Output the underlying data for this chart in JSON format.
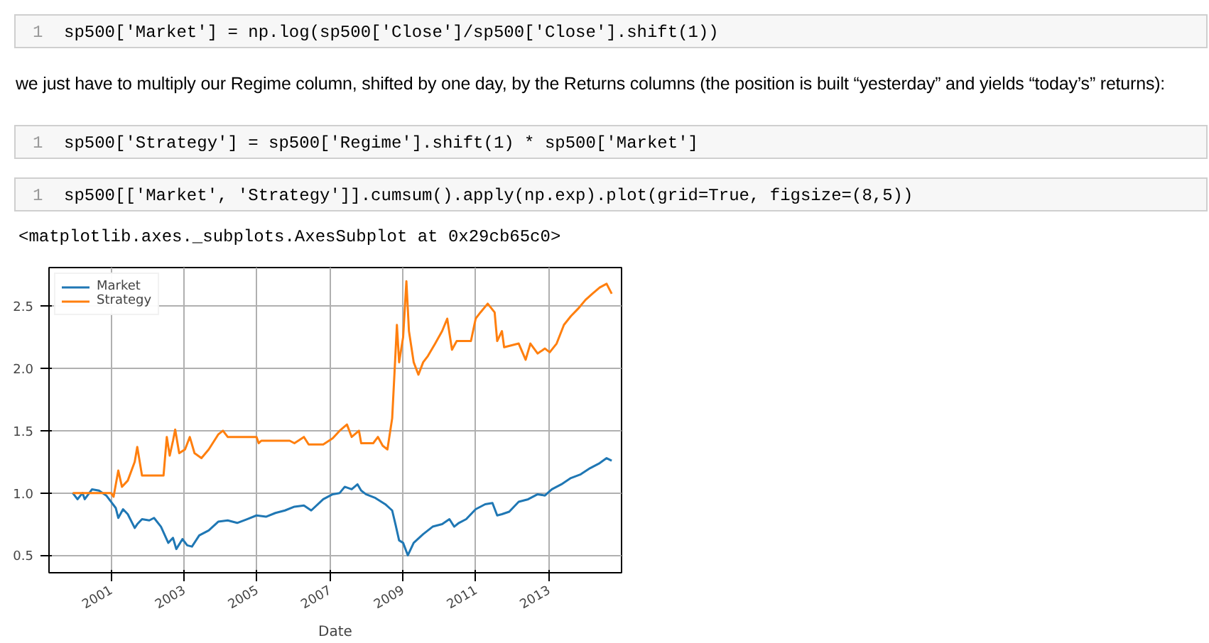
{
  "chart_data": {
    "type": "line",
    "xlabel": "Date",
    "annotations": [
      "1",
      "sp500['Market'] = np.log(sp500['Close']/sp500['Close'].shift(1))",
      "we just have to multiply our Regime column, shifted by one day, by the Returns columns (the position is built “yesterday” and yields “today’s” returns):",
      "1",
      "sp500['Strategy'] = sp500['Regime'].shift(1) * sp500['Market']",
      "1",
      "sp500[['Market', 'Strategy']].cumsum().apply(np.exp).plot(grid=True, figsize=(8,5))",
      "<matplotlib.axes._subplots.AxesSubplot at 0x29cb65c0>"
    ],
    "xlim": [
      1999.3,
      2015.0
    ],
    "xticks": [
      2001,
      2003,
      2005,
      2007,
      2009,
      2011,
      2013
    ],
    "ylim": [
      0.36,
      2.81
    ],
    "yticks": [
      {
        "value": 0.5,
        "label": "0.5"
      },
      {
        "value": 1.0,
        "label": "1.0"
      },
      {
        "value": 1.5,
        "label": "1.5"
      },
      {
        "value": 2.0,
        "label": "2.0"
      },
      {
        "value": 2.5,
        "label": "2.5"
      }
    ],
    "grid": true,
    "legend": "top left",
    "series": [
      {
        "name": "Market",
        "color": "#1f77b4",
        "x": [
          1999.95,
          2000.08,
          2000.22,
          2000.28,
          2000.48,
          2000.67,
          2000.87,
          2001.0,
          2001.13,
          2001.2,
          2001.33,
          2001.46,
          2001.65,
          2001.72,
          2001.85,
          2002.05,
          2002.18,
          2002.37,
          2002.57,
          2002.7,
          2002.79,
          2002.96,
          2003.09,
          2003.22,
          2003.42,
          2003.68,
          2003.94,
          2004.2,
          2004.46,
          2004.73,
          2004.99,
          2005.25,
          2005.51,
          2005.77,
          2006.03,
          2006.29,
          2006.49,
          2006.82,
          2007.08,
          2007.27,
          2007.41,
          2007.6,
          2007.76,
          2007.86,
          2007.99,
          2008.25,
          2008.52,
          2008.71,
          2008.8,
          2008.9,
          2009.01,
          2009.14,
          2009.3,
          2009.56,
          2009.82,
          2010.08,
          2010.28,
          2010.41,
          2010.54,
          2010.74,
          2011.0,
          2011.26,
          2011.46,
          2011.59,
          2011.72,
          2011.92,
          2012.18,
          2012.44,
          2012.7,
          2012.9,
          2013.09,
          2013.35,
          2013.61,
          2013.88,
          2014.14,
          2014.4,
          2014.59,
          2014.73
        ],
        "values": [
          1.0,
          0.95,
          1.0,
          0.95,
          1.03,
          1.02,
          0.98,
          0.93,
          0.88,
          0.8,
          0.87,
          0.83,
          0.72,
          0.75,
          0.79,
          0.78,
          0.8,
          0.73,
          0.6,
          0.64,
          0.55,
          0.63,
          0.58,
          0.57,
          0.66,
          0.7,
          0.77,
          0.78,
          0.76,
          0.79,
          0.82,
          0.81,
          0.84,
          0.86,
          0.89,
          0.9,
          0.86,
          0.95,
          0.99,
          1.0,
          1.05,
          1.03,
          1.07,
          1.02,
          0.99,
          0.96,
          0.91,
          0.86,
          0.75,
          0.62,
          0.6,
          0.5,
          0.6,
          0.67,
          0.73,
          0.75,
          0.79,
          0.73,
          0.76,
          0.79,
          0.87,
          0.91,
          0.92,
          0.82,
          0.83,
          0.85,
          0.93,
          0.95,
          0.99,
          0.98,
          1.03,
          1.07,
          1.12,
          1.15,
          1.2,
          1.24,
          1.28,
          1.26
        ]
      },
      {
        "name": "Strategy",
        "color": "#ff7f0e",
        "x": [
          1999.95,
          2001.0,
          2001.07,
          2001.2,
          2001.3,
          2001.46,
          2001.65,
          2001.72,
          2001.85,
          2002.44,
          2002.53,
          2002.61,
          2002.7,
          2002.76,
          2002.87,
          2003.03,
          2003.16,
          2003.29,
          2003.48,
          2003.68,
          2003.94,
          2004.07,
          2004.2,
          2004.33,
          2004.99,
          2005.05,
          2005.12,
          2005.9,
          2006.03,
          2006.29,
          2006.42,
          2006.82,
          2007.08,
          2007.27,
          2007.47,
          2007.6,
          2007.8,
          2007.86,
          2008.19,
          2008.32,
          2008.45,
          2008.58,
          2008.71,
          2008.78,
          2008.84,
          2008.9,
          2009.01,
          2009.1,
          2009.17,
          2009.3,
          2009.43,
          2009.56,
          2009.69,
          2009.89,
          2010.08,
          2010.22,
          2010.35,
          2010.48,
          2010.87,
          2011.0,
          2011.13,
          2011.33,
          2011.52,
          2011.59,
          2011.72,
          2011.78,
          2012.18,
          2012.37,
          2012.5,
          2012.7,
          2012.9,
          2013.03,
          2013.22,
          2013.42,
          2013.61,
          2013.81,
          2014.01,
          2014.2,
          2014.4,
          2014.59,
          2014.73
        ],
        "values": [
          1.0,
          1.0,
          0.97,
          1.18,
          1.05,
          1.1,
          1.25,
          1.37,
          1.14,
          1.14,
          1.45,
          1.3,
          1.42,
          1.51,
          1.32,
          1.35,
          1.45,
          1.32,
          1.28,
          1.35,
          1.47,
          1.5,
          1.45,
          1.45,
          1.45,
          1.4,
          1.42,
          1.42,
          1.4,
          1.45,
          1.39,
          1.39,
          1.44,
          1.5,
          1.55,
          1.45,
          1.5,
          1.4,
          1.4,
          1.45,
          1.38,
          1.35,
          1.6,
          2.0,
          2.35,
          2.05,
          2.25,
          2.7,
          2.3,
          2.05,
          1.95,
          2.05,
          2.1,
          2.2,
          2.3,
          2.4,
          2.15,
          2.22,
          2.22,
          2.4,
          2.45,
          2.52,
          2.45,
          2.22,
          2.3,
          2.17,
          2.2,
          2.07,
          2.2,
          2.12,
          2.16,
          2.13,
          2.2,
          2.35,
          2.42,
          2.48,
          2.55,
          2.6,
          2.65,
          2.68,
          2.6
        ]
      }
    ]
  }
}
